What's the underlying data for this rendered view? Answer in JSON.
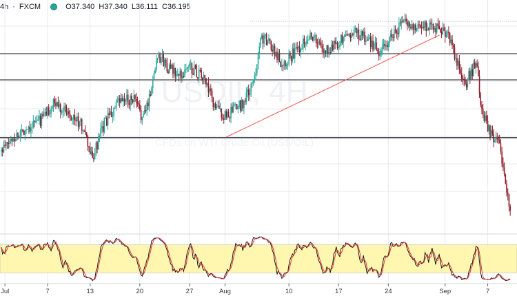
{
  "header": {
    "interval_fragment": "4h",
    "source": "FXCM",
    "status_color": "#26a69a",
    "open": "O37.340",
    "high": "H37.340",
    "low": "L36.111",
    "close": "C36.195"
  },
  "watermark": {
    "symbol": "USOIL, 4H",
    "description": "CFDs on WTI Crude Oil (US$/OIL)"
  },
  "chart_data": [
    {
      "type": "candlestick",
      "timeframe": "4h",
      "x_ticks": [
        "Jul",
        "7",
        "13",
        "20",
        "27",
        "Aug",
        "10",
        "17",
        "24",
        "Sep",
        "7"
      ],
      "x_tick_days": [
        0,
        6,
        12,
        19,
        26,
        31,
        40,
        47,
        54,
        62,
        68
      ],
      "ylim": [
        29.0,
        45.5
      ],
      "candles": [],
      "candle_keypoints": [
        {
          "day": -0.5,
          "close": 34.9
        },
        {
          "day": 1,
          "close": 35.8
        },
        {
          "day": 3,
          "close": 36.6
        },
        {
          "day": 5,
          "close": 37.2
        },
        {
          "day": 7,
          "close": 38.4
        },
        {
          "day": 9,
          "close": 37.8
        },
        {
          "day": 11,
          "close": 36.6
        },
        {
          "day": 12.3,
          "close": 34.3
        },
        {
          "day": 14,
          "close": 36.9
        },
        {
          "day": 16,
          "close": 38.4
        },
        {
          "day": 18,
          "close": 38.8
        },
        {
          "day": 19.5,
          "close": 37.3
        },
        {
          "day": 20.5,
          "close": 39.2
        },
        {
          "day": 21.5,
          "close": 42.0
        },
        {
          "day": 23,
          "close": 41.0
        },
        {
          "day": 24.5,
          "close": 40.3
        },
        {
          "day": 26,
          "close": 41.1
        },
        {
          "day": 28,
          "close": 40.2
        },
        {
          "day": 29.5,
          "close": 38.2
        },
        {
          "day": 31,
          "close": 37.4
        },
        {
          "day": 33.5,
          "close": 38.4
        },
        {
          "day": 35,
          "close": 39.8
        },
        {
          "day": 36,
          "close": 43.3
        },
        {
          "day": 37.5,
          "close": 42.6
        },
        {
          "day": 39,
          "close": 41.3
        },
        {
          "day": 41,
          "close": 42.2
        },
        {
          "day": 43,
          "close": 43.5
        },
        {
          "day": 45,
          "close": 42.1
        },
        {
          "day": 47,
          "close": 42.9
        },
        {
          "day": 49,
          "close": 43.6
        },
        {
          "day": 51,
          "close": 43.1
        },
        {
          "day": 53,
          "close": 42.0
        },
        {
          "day": 54,
          "close": 43.0
        },
        {
          "day": 56,
          "close": 44.3
        },
        {
          "day": 58,
          "close": 43.9
        },
        {
          "day": 60,
          "close": 44.2
        },
        {
          "day": 61,
          "close": 43.8
        },
        {
          "day": 62.5,
          "close": 43.4
        },
        {
          "day": 64,
          "close": 40.9
        },
        {
          "day": 65,
          "close": 40.0
        },
        {
          "day": 66.5,
          "close": 41.4
        },
        {
          "day": 67,
          "close": 37.9
        },
        {
          "day": 68.5,
          "close": 36.0
        },
        {
          "day": 69.5,
          "close": 35.5
        },
        {
          "day": 70.3,
          "close": 33.8
        },
        {
          "day": 71,
          "close": 30.7
        },
        {
          "day": 71.2,
          "close": 30.3
        }
      ],
      "horizontal_levels": [
        {
          "price": 44.35,
          "style": "dotted",
          "color": "#9aa0a6",
          "from_day": 34.5
        },
        {
          "price": 42.0,
          "style": "solid",
          "color": "#131722"
        },
        {
          "price": 40.1,
          "style": "solid",
          "color": "#131722"
        },
        {
          "price": 35.9,
          "style": "solid",
          "color": "#131722",
          "width": 1.4
        }
      ],
      "trendline": {
        "color": "#ef5350",
        "from": {
          "day": 31.2,
          "close": 35.95
        },
        "to": {
          "day": 61.2,
          "close": 43.35
        }
      },
      "colors": {
        "up": "#26a69a",
        "down": "#8e1b2a",
        "grid": "#e6e9ee",
        "axis": "#5d606b"
      }
    },
    {
      "type": "line",
      "indicator": "stochastic",
      "ylim": [
        0,
        100
      ],
      "band": [
        20,
        80
      ],
      "band_color": "#fff7b0",
      "series": [
        {
          "color": "#131722"
        },
        {
          "color": "#e53935"
        }
      ]
    }
  ]
}
